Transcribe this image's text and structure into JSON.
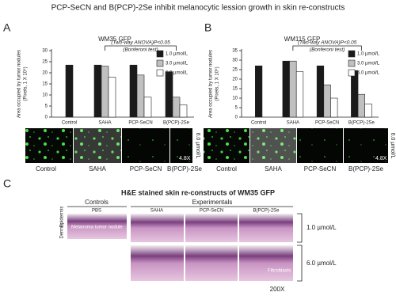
{
  "title": "PCP-SeCN and B(PCP)-2Se inhibit melanocytic lession growth in skin re-constructs",
  "chart_data": [
    {
      "type": "bar",
      "panel": "A",
      "title": "WM35 GFP",
      "ylabel": [
        "Area occupied by tumor nodules",
        "(Pixels, 1 X 10⁵)"
      ],
      "annotations": [
        "(Two-way ANOVA)P<0.05",
        "(Bonferoni test)"
      ],
      "categories": [
        "Control",
        "SAHA",
        "PCP-SeCN",
        "B(PCP)-2Se"
      ],
      "series": [
        {
          "name": "1.0 µmol/L",
          "color": "#1a1a1a",
          "values": [
            23.5,
            23.5,
            23.5,
            20.5
          ]
        },
        {
          "name": "3.0 µmol/L",
          "color": "#c0c0c0",
          "values": [
            null,
            23,
            19,
            9
          ]
        },
        {
          "name": "6.0 µmol/L",
          "color": "#ffffff",
          "values": [
            null,
            18,
            9,
            5.5
          ]
        }
      ],
      "ylim": [
        0,
        30
      ],
      "yticks": [
        0,
        5,
        10,
        15,
        20,
        25,
        30
      ]
    },
    {
      "type": "bar",
      "panel": "B",
      "title": "WM115 GFP",
      "ylabel": [
        "Area occupied by tumor nodules",
        "(Pixels, 1 X 10⁵)"
      ],
      "annotations": [
        "(Two-way ANOVA)P<0.05",
        "(Bonferoni test)"
      ],
      "categories": [
        "Control",
        "SAHA",
        "PCP-SeCN",
        "B(PCP)-2Se"
      ],
      "series": [
        {
          "name": "1.0 µmol/L",
          "color": "#1a1a1a",
          "values": [
            27,
            29.5,
            27,
            24.5
          ]
        },
        {
          "name": "3.0 µmol/L",
          "color": "#c0c0c0",
          "values": [
            null,
            29.5,
            17,
            12
          ]
        },
        {
          "name": "6.0 µmol/L",
          "color": "#ffffff",
          "values": [
            null,
            24,
            10,
            7
          ]
        }
      ],
      "ylim": [
        0,
        35
      ],
      "yticks": [
        0,
        5,
        10,
        15,
        20,
        25,
        30,
        35
      ]
    }
  ],
  "images_a": {
    "labels": [
      "Control",
      "SAHA",
      "PCP-SeCN",
      "B(PCP)-2Se"
    ],
    "magnification": "4.8X",
    "dose": "6.0 µmol/L"
  },
  "images_b": {
    "labels": [
      "Control",
      "SAHA",
      "PCP-SeCN",
      "B(PCP)-2Se"
    ],
    "magnification": "4.8X",
    "dose": "6.0 µmol/L"
  },
  "panel_c": {
    "label": "C",
    "title": "H&E stained skin re-constructs of WM35 GFP",
    "controls": "Controls",
    "experimentals": "Experimentals",
    "columns": [
      "PBS",
      "SAHA",
      "PCP-SeCN",
      "B(PCP)-2Se"
    ],
    "rows": [
      "1.0 µmol/L",
      "6.0 µmol/L"
    ],
    "layers": [
      "Epidermis",
      "Dermis"
    ],
    "nodule": "Melanoma tumor nodule",
    "fibroblasts": "Fibroblasts",
    "magnification": "200X"
  }
}
